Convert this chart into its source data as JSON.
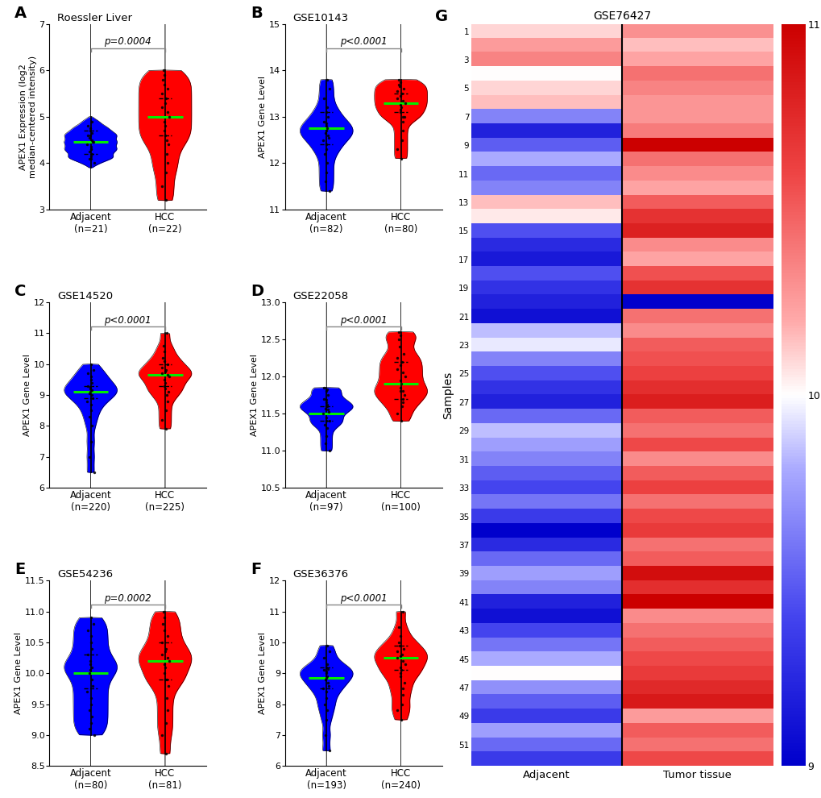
{
  "panels": [
    {
      "label": "A",
      "title": "Roessler Liver",
      "ylabel": "APEX1 Expression (log2\nmedian-centered intensity)",
      "pvalue": "p=0.0004",
      "groups": [
        {
          "name": "Adjacent\n(n=21)",
          "color": "#0000FF",
          "median": 4.45,
          "q1": 4.2,
          "q3": 4.7,
          "min": 3.9,
          "max": 5.0,
          "kde_pts": [
            4.0,
            4.1,
            4.15,
            4.2,
            4.25,
            4.3,
            4.35,
            4.4,
            4.45,
            4.5,
            4.55,
            4.6,
            4.65,
            4.7,
            4.75,
            4.8,
            4.9,
            4.1,
            4.3,
            4.6,
            4.45
          ],
          "scatter_pts": [
            4.0,
            4.1,
            4.15,
            4.2,
            4.25,
            4.3,
            4.35,
            4.4,
            4.45,
            4.5,
            4.55,
            4.6,
            4.65,
            4.7,
            4.75,
            4.8,
            4.9,
            4.1,
            4.3,
            4.6,
            4.45
          ]
        },
        {
          "name": "HCC\n(n=22)",
          "color": "#FF0000",
          "median": 5.0,
          "q1": 4.6,
          "q3": 5.4,
          "min": 3.2,
          "max": 6.0,
          "kde_pts": [
            3.2,
            3.5,
            3.8,
            4.0,
            4.2,
            4.4,
            4.6,
            4.7,
            4.8,
            4.9,
            5.0,
            5.1,
            5.2,
            5.3,
            5.4,
            5.5,
            5.6,
            5.7,
            5.8,
            5.9,
            6.0,
            4.5
          ],
          "scatter_pts": [
            3.2,
            3.5,
            3.8,
            4.0,
            4.2,
            4.4,
            4.6,
            4.7,
            4.8,
            4.9,
            5.0,
            5.1,
            5.2,
            5.3,
            5.4,
            5.5,
            5.6,
            5.7,
            5.8,
            5.9,
            6.0,
            4.5
          ]
        }
      ],
      "ylim": [
        3.0,
        7.0
      ],
      "yticks": [
        3,
        4,
        5,
        6,
        7
      ]
    },
    {
      "label": "B",
      "title": "GSE10143",
      "ylabel": "APEX1 Gene Level",
      "pvalue": "p<0.0001",
      "groups": [
        {
          "name": "Adjacent\n(n=82)",
          "color": "#0000FF",
          "median": 12.75,
          "q1": 12.4,
          "q3": 13.1,
          "min": 11.4,
          "max": 13.8,
          "kde_pts": [
            11.4,
            11.6,
            11.8,
            12.0,
            12.2,
            12.3,
            12.4,
            12.5,
            12.55,
            12.6,
            12.65,
            12.7,
            12.75,
            12.8,
            12.85,
            12.9,
            13.0,
            13.1,
            13.2,
            13.4,
            13.6,
            13.8
          ],
          "scatter_pts": [
            11.4,
            11.6,
            11.8,
            12.0,
            12.2,
            12.3,
            12.4,
            12.5,
            12.55,
            12.6,
            12.65,
            12.7,
            12.75,
            12.8,
            12.85,
            12.9,
            13.0,
            13.1,
            13.2,
            13.4,
            13.6,
            13.8
          ]
        },
        {
          "name": "HCC\n(n=80)",
          "color": "#FF0000",
          "median": 13.3,
          "q1": 13.1,
          "q3": 13.5,
          "min": 12.1,
          "max": 13.8,
          "kde_pts": [
            12.1,
            12.3,
            12.5,
            12.7,
            12.9,
            13.0,
            13.1,
            13.15,
            13.2,
            13.25,
            13.3,
            13.35,
            13.4,
            13.45,
            13.5,
            13.55,
            13.6,
            13.65,
            13.7,
            13.75,
            13.8,
            13.0
          ],
          "scatter_pts": [
            12.1,
            12.3,
            12.5,
            12.7,
            12.9,
            13.0,
            13.1,
            13.15,
            13.2,
            13.25,
            13.3,
            13.35,
            13.4,
            13.45,
            13.5,
            13.55,
            13.6,
            13.65,
            13.7,
            13.75,
            13.8,
            13.0
          ]
        }
      ],
      "ylim": [
        11.0,
        15.0
      ],
      "yticks": [
        11,
        12,
        13,
        14,
        15
      ]
    },
    {
      "label": "C",
      "title": "GSE14520",
      "ylabel": "APEX1 Gene Level",
      "pvalue": "p<0.0001",
      "groups": [
        {
          "name": "Adjacent\n(n=220)",
          "color": "#0000FF",
          "median": 9.1,
          "q1": 8.9,
          "q3": 9.3,
          "min": 6.5,
          "max": 10.0,
          "kde_pts": [
            6.5,
            7.0,
            7.5,
            8.0,
            8.3,
            8.5,
            8.7,
            8.8,
            8.9,
            9.0,
            9.05,
            9.1,
            9.15,
            9.2,
            9.25,
            9.3,
            9.4,
            9.5,
            9.6,
            9.7,
            9.8,
            10.0
          ],
          "scatter_pts": [
            6.5,
            7.0,
            7.5,
            8.0,
            8.3,
            8.5,
            8.7,
            8.8,
            8.9,
            9.0,
            9.05,
            9.1,
            9.15,
            9.2,
            9.25,
            9.3,
            9.4,
            9.5,
            9.6,
            9.7,
            9.8,
            10.0
          ]
        },
        {
          "name": "HCC\n(n=225)",
          "color": "#FF0000",
          "median": 9.65,
          "q1": 9.3,
          "q3": 10.0,
          "min": 7.9,
          "max": 11.0,
          "kde_pts": [
            7.9,
            8.2,
            8.5,
            8.8,
            9.0,
            9.1,
            9.2,
            9.3,
            9.4,
            9.5,
            9.6,
            9.65,
            9.7,
            9.75,
            9.8,
            9.9,
            10.0,
            10.1,
            10.2,
            10.4,
            10.6,
            11.0
          ],
          "scatter_pts": [
            7.9,
            8.2,
            8.5,
            8.8,
            9.0,
            9.1,
            9.2,
            9.3,
            9.4,
            9.5,
            9.6,
            9.65,
            9.7,
            9.75,
            9.8,
            9.9,
            10.0,
            10.1,
            10.2,
            10.4,
            10.6,
            11.0
          ]
        }
      ],
      "ylim": [
        6.0,
        12.0
      ],
      "yticks": [
        6,
        7,
        8,
        9,
        10,
        11,
        12
      ]
    },
    {
      "label": "D",
      "title": "GSE22058",
      "ylabel": "APEX1 Gene Level",
      "pvalue": "p<0.0001",
      "groups": [
        {
          "name": "Adjacent\n(n=97)",
          "color": "#0000FF",
          "median": 11.5,
          "q1": 11.4,
          "q3": 11.6,
          "min": 11.0,
          "max": 11.85,
          "kde_pts": [
            11.0,
            11.1,
            11.2,
            11.3,
            11.35,
            11.4,
            11.45,
            11.5,
            11.52,
            11.55,
            11.57,
            11.6,
            11.62,
            11.65,
            11.68,
            11.7,
            11.75,
            11.8,
            11.83,
            11.85,
            11.4,
            11.6
          ],
          "scatter_pts": [
            11.0,
            11.1,
            11.2,
            11.3,
            11.35,
            11.4,
            11.45,
            11.5,
            11.52,
            11.55,
            11.57,
            11.6,
            11.62,
            11.65,
            11.68,
            11.7,
            11.75,
            11.8,
            11.83,
            11.85,
            11.4,
            11.6
          ]
        },
        {
          "name": "HCC\n(n=100)",
          "color": "#FF0000",
          "median": 11.9,
          "q1": 11.7,
          "q3": 12.2,
          "min": 11.4,
          "max": 12.6,
          "kde_pts": [
            11.4,
            11.5,
            11.6,
            11.65,
            11.7,
            11.75,
            11.8,
            11.85,
            11.9,
            11.95,
            12.0,
            12.05,
            12.1,
            12.15,
            12.2,
            12.25,
            12.3,
            12.4,
            12.5,
            12.55,
            12.6,
            11.8
          ],
          "scatter_pts": [
            11.4,
            11.5,
            11.6,
            11.65,
            11.7,
            11.75,
            11.8,
            11.85,
            11.9,
            11.95,
            12.0,
            12.05,
            12.1,
            12.15,
            12.2,
            12.25,
            12.3,
            12.4,
            12.5,
            12.55,
            12.6,
            11.8
          ]
        }
      ],
      "ylim": [
        10.5,
        13.0
      ],
      "yticks": [
        10.5,
        11.0,
        11.5,
        12.0,
        12.5,
        13.0
      ]
    },
    {
      "label": "E",
      "title": "GSE54236",
      "ylabel": "APEX1 Gene Level",
      "pvalue": "p=0.0002",
      "groups": [
        {
          "name": "Adjacent\n(n=80)",
          "color": "#0000FF",
          "median": 10.0,
          "q1": 9.75,
          "q3": 10.3,
          "min": 9.0,
          "max": 10.9,
          "kde_pts": [
            9.0,
            9.1,
            9.2,
            9.3,
            9.4,
            9.5,
            9.6,
            9.7,
            9.8,
            9.9,
            10.0,
            10.05,
            10.1,
            10.15,
            10.2,
            10.3,
            10.4,
            10.5,
            10.6,
            10.7,
            10.8,
            10.9
          ],
          "scatter_pts": [
            9.0,
            9.1,
            9.2,
            9.3,
            9.4,
            9.5,
            9.6,
            9.7,
            9.8,
            9.9,
            10.0,
            10.05,
            10.1,
            10.15,
            10.2,
            10.3,
            10.4,
            10.5,
            10.6,
            10.7,
            10.8,
            10.9
          ]
        },
        {
          "name": "HCC\n(n=81)",
          "color": "#FF0000",
          "median": 10.2,
          "q1": 9.9,
          "q3": 10.5,
          "min": 8.7,
          "max": 11.0,
          "kde_pts": [
            8.7,
            9.0,
            9.2,
            9.4,
            9.6,
            9.8,
            9.9,
            10.0,
            10.1,
            10.15,
            10.2,
            10.25,
            10.3,
            10.35,
            10.4,
            10.5,
            10.6,
            10.7,
            10.8,
            10.9,
            11.0,
            9.9
          ],
          "scatter_pts": [
            8.7,
            9.0,
            9.2,
            9.4,
            9.6,
            9.8,
            9.9,
            10.0,
            10.1,
            10.15,
            10.2,
            10.25,
            10.3,
            10.35,
            10.4,
            10.5,
            10.6,
            10.7,
            10.8,
            10.9,
            11.0,
            9.9
          ]
        }
      ],
      "ylim": [
        8.5,
        11.5
      ],
      "yticks": [
        8.5,
        9.0,
        9.5,
        10.0,
        10.5,
        11.0,
        11.5
      ]
    },
    {
      "label": "F",
      "title": "GSE36376",
      "ylabel": "APEX1 Gene Level",
      "pvalue": "p<0.0001",
      "groups": [
        {
          "name": "Adjacent\n(n=193)",
          "color": "#0000FF",
          "median": 8.85,
          "q1": 8.5,
          "q3": 9.2,
          "min": 6.5,
          "max": 9.9,
          "kde_pts": [
            6.5,
            7.0,
            7.5,
            7.8,
            8.0,
            8.2,
            8.4,
            8.5,
            8.6,
            8.7,
            8.8,
            8.85,
            8.9,
            9.0,
            9.05,
            9.1,
            9.15,
            9.2,
            9.3,
            9.5,
            9.7,
            9.9
          ],
          "scatter_pts": [
            6.5,
            7.0,
            7.5,
            7.8,
            8.0,
            8.2,
            8.4,
            8.5,
            8.6,
            8.7,
            8.8,
            8.85,
            8.9,
            9.0,
            9.05,
            9.1,
            9.15,
            9.2,
            9.3,
            9.5,
            9.7,
            9.9
          ]
        },
        {
          "name": "HCC\n(n=240)",
          "color": "#FF0000",
          "median": 9.5,
          "q1": 9.1,
          "q3": 9.9,
          "min": 7.5,
          "max": 11.0,
          "kde_pts": [
            7.5,
            7.8,
            8.0,
            8.3,
            8.5,
            8.7,
            8.9,
            9.0,
            9.1,
            9.2,
            9.3,
            9.4,
            9.5,
            9.55,
            9.6,
            9.7,
            9.8,
            9.9,
            10.0,
            10.2,
            10.5,
            11.0
          ],
          "scatter_pts": [
            7.5,
            7.8,
            8.0,
            8.3,
            8.5,
            8.7,
            8.9,
            9.0,
            9.1,
            9.2,
            9.3,
            9.4,
            9.5,
            9.55,
            9.6,
            9.7,
            9.8,
            9.9,
            10.0,
            10.2,
            10.5,
            11.0
          ]
        }
      ],
      "ylim": [
        6.0,
        12.0
      ],
      "yticks": [
        6,
        7,
        8,
        9,
        10,
        11,
        12
      ]
    }
  ],
  "heatmap": {
    "title": "GSE76427",
    "xlabel_left": "Adjacent",
    "xlabel_right": "Tumor tissue",
    "ylabel": "Samples",
    "n_samples": 52,
    "vmin": 9.0,
    "vmax": 11.0,
    "colorbar_ticks": [
      9,
      10,
      11
    ],
    "adj": [
      10.1,
      10.2,
      10.3,
      9.9,
      10.05,
      10.1,
      9.7,
      9.8,
      9.3,
      9.8,
      9.6,
      9.7,
      10.2,
      10.1,
      9.5,
      9.3,
      9.2,
      9.5,
      9.3,
      9.2,
      9.1,
      9.8,
      9.9,
      9.6,
      9.5,
      9.3,
      9.2,
      9.6,
      9.8,
      9.7,
      9.6,
      9.5,
      9.4,
      9.6,
      9.3,
      9.0,
      9.2,
      9.5,
      9.7,
      9.6,
      9.2,
      9.1,
      9.4,
      9.6,
      9.8,
      10.0,
      9.7,
      9.5,
      9.4,
      9.7,
      9.5,
      9.3
    ],
    "tum": [
      10.35,
      10.2,
      10.25,
      10.4,
      10.35,
      10.3,
      10.3,
      10.4,
      11.2,
      10.45,
      10.35,
      10.3,
      10.5,
      10.7,
      10.8,
      10.35,
      10.3,
      10.55,
      10.7,
      9.0,
      10.45,
      10.35,
      10.5,
      10.55,
      10.6,
      10.7,
      10.8,
      10.5,
      10.45,
      10.55,
      10.35,
      10.5,
      10.6,
      10.45,
      10.55,
      10.6,
      10.45,
      10.5,
      10.95,
      10.7,
      11.0,
      10.35,
      10.45,
      10.5,
      10.55,
      10.6,
      10.7,
      10.8,
      10.3,
      10.5,
      10.45,
      10.55
    ]
  }
}
